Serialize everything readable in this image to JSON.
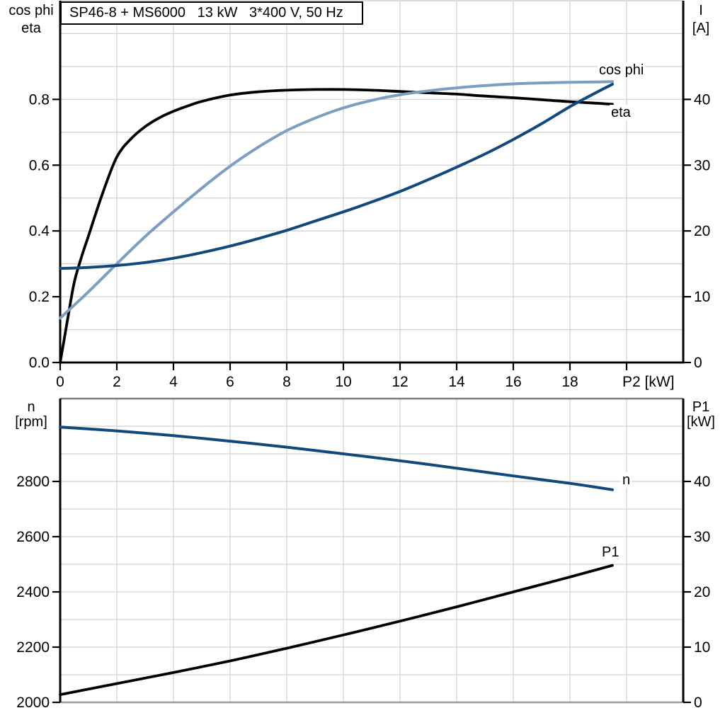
{
  "title_box": {
    "text": "SP46-8 + MS6000   13 kW   3*400 V, 50 Hz"
  },
  "colors": {
    "black": "#000000",
    "dark_blue": "#12497c",
    "light_blue": "#7d9ec3",
    "grid": "#d2d2d2",
    "border_gray": "#7d7d7d",
    "border_gray_light": "#9a9a9a"
  },
  "headers": {
    "top_left_line1": "cos phi",
    "top_left_line2": "eta",
    "top_right_line1": "I",
    "top_right_line2": "[A]",
    "bottom_left_line1": "n",
    "bottom_left_line2": "[rpm]",
    "bottom_right_line1": "P1",
    "bottom_right_line2": "[kW]"
  },
  "curve_labels": {
    "cos_phi": "cos phi",
    "eta": "eta",
    "n": "n",
    "p1": "P1"
  },
  "chart_data": [
    {
      "type": "line",
      "title": "SP46-8 + MS6000   13 kW   3*400 V, 50 Hz",
      "xlabel": "P2 [kW]",
      "ylabel_left": "cos phi / eta",
      "ylabel_right": "I [A]",
      "xlim": [
        0,
        22
      ],
      "x_grid_step": 2,
      "ylim_left": [
        0,
        1.1
      ],
      "y_grid_step_left": 0.1,
      "ylim_right": [
        0,
        55
      ],
      "grid": true,
      "legend_position": "labels-at-line-ends",
      "xticks": [
        {
          "v": 0,
          "t": "0"
        },
        {
          "v": 2,
          "t": "2"
        },
        {
          "v": 4,
          "t": "4"
        },
        {
          "v": 6,
          "t": "6"
        },
        {
          "v": 8,
          "t": "8"
        },
        {
          "v": 10,
          "t": "10"
        },
        {
          "v": 12,
          "t": "12"
        },
        {
          "v": 14,
          "t": "14"
        },
        {
          "v": 16,
          "t": "16"
        },
        {
          "v": 18,
          "t": "18"
        },
        {
          "v": 20,
          "t": ""
        }
      ],
      "yticks_left": [
        {
          "v": 0,
          "t": "0.0"
        },
        {
          "v": 0.2,
          "t": "0.2"
        },
        {
          "v": 0.4,
          "t": "0.4"
        },
        {
          "v": 0.6,
          "t": "0.6"
        },
        {
          "v": 0.8,
          "t": "0.8"
        }
      ],
      "yticks_right": [
        {
          "v": 0,
          "t": "0"
        },
        {
          "v": 10,
          "t": "10"
        },
        {
          "v": 20,
          "t": "20"
        },
        {
          "v": 30,
          "t": "30"
        },
        {
          "v": 40,
          "t": "40"
        }
      ],
      "series": [
        {
          "name": "eta",
          "axis": "left",
          "color_key": "black",
          "width": 3.8,
          "x": [
            0,
            0.15,
            0.3,
            0.5,
            0.75,
            1,
            1.5,
            2,
            2.5,
            3,
            3.5,
            4,
            4.5,
            5,
            6,
            7,
            8,
            9,
            10,
            11,
            12,
            13,
            14,
            15,
            16,
            17,
            18,
            19,
            19.5
          ],
          "y": [
            0,
            0.075,
            0.15,
            0.245,
            0.32,
            0.385,
            0.515,
            0.625,
            0.68,
            0.717,
            0.744,
            0.764,
            0.78,
            0.794,
            0.813,
            0.823,
            0.828,
            0.83,
            0.83,
            0.828,
            0.824,
            0.82,
            0.816,
            0.81,
            0.805,
            0.799,
            0.793,
            0.788,
            0.785
          ]
        },
        {
          "name": "cos phi",
          "axis": "left",
          "color_key": "light_blue",
          "width": 4,
          "x": [
            0,
            1,
            2,
            3,
            4,
            5,
            6,
            7,
            8,
            9,
            10,
            11,
            12,
            13,
            14,
            15,
            16,
            17,
            18,
            19,
            19.5
          ],
          "y": [
            0.135,
            0.215,
            0.3,
            0.383,
            0.458,
            0.53,
            0.597,
            0.655,
            0.705,
            0.743,
            0.774,
            0.797,
            0.814,
            0.826,
            0.835,
            0.842,
            0.847,
            0.85,
            0.852,
            0.853,
            0.854
          ]
        },
        {
          "name": "I",
          "axis": "right",
          "color_key": "dark_blue",
          "width": 4,
          "x": [
            0,
            1,
            2,
            3,
            4,
            5,
            6,
            7,
            8,
            9,
            10,
            11,
            12,
            13,
            14,
            15,
            16,
            17,
            18,
            19,
            19.5
          ],
          "y": [
            14.3,
            14.45,
            14.75,
            15.2,
            15.85,
            16.7,
            17.7,
            18.85,
            20.1,
            21.5,
            22.9,
            24.4,
            26.0,
            27.8,
            29.7,
            31.7,
            33.9,
            36.3,
            38.9,
            41.2,
            42.3
          ]
        }
      ]
    },
    {
      "type": "line",
      "title": "",
      "xlabel": "",
      "ylabel_left": "n [rpm]",
      "ylabel_right": "P1 [kW]",
      "xlim": [
        0,
        22
      ],
      "x_grid_step": 2,
      "ylim_left": [
        2000,
        3100
      ],
      "y_grid_step_left": 100,
      "ylim_right": [
        0,
        55
      ],
      "grid": true,
      "legend_position": "labels-at-line-ends",
      "xticks": [],
      "yticks_left": [
        {
          "v": 2000,
          "t": "2000"
        },
        {
          "v": 2200,
          "t": "2200"
        },
        {
          "v": 2400,
          "t": "2400"
        },
        {
          "v": 2600,
          "t": "2600"
        },
        {
          "v": 2800,
          "t": "2800"
        }
      ],
      "yticks_right": [
        {
          "v": 0,
          "t": "0"
        },
        {
          "v": 10,
          "t": "10"
        },
        {
          "v": 20,
          "t": "20"
        },
        {
          "v": 30,
          "t": "30"
        },
        {
          "v": 40,
          "t": "40"
        }
      ],
      "series": [
        {
          "name": "n",
          "axis": "left",
          "color_key": "dark_blue",
          "width": 4,
          "x": [
            0,
            2,
            4,
            6,
            8,
            10,
            12,
            14,
            16,
            18,
            19,
            19.5
          ],
          "y": [
            2997,
            2983,
            2966,
            2946,
            2924,
            2900,
            2875,
            2848,
            2820,
            2793,
            2778,
            2770
          ]
        },
        {
          "name": "P1",
          "axis": "right",
          "color_key": "black",
          "width": 3.8,
          "x": [
            0,
            2,
            4,
            6,
            8,
            10,
            12,
            14,
            16,
            18,
            19.5
          ],
          "y": [
            1.4,
            3.4,
            5.4,
            7.5,
            9.8,
            12.2,
            14.7,
            17.3,
            20.0,
            22.7,
            24.8
          ]
        }
      ]
    }
  ]
}
